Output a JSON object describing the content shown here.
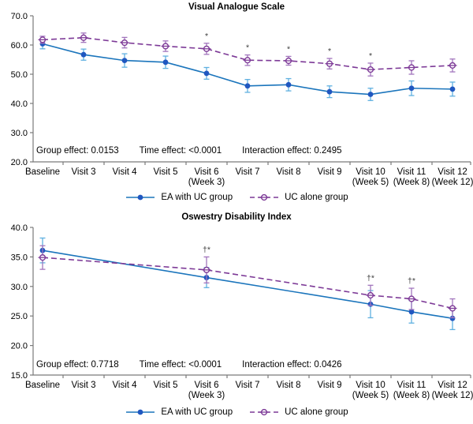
{
  "chart_data": [
    {
      "type": "line",
      "title": "Visual Analogue Scale",
      "ylim": [
        20,
        70
      ],
      "ytick_step": 10,
      "grid": false,
      "legend_position": "bottom",
      "categories": [
        {
          "label": "Baseline",
          "sub": ""
        },
        {
          "label": "Visit 3",
          "sub": ""
        },
        {
          "label": "Visit 4",
          "sub": ""
        },
        {
          "label": "Visit 5",
          "sub": ""
        },
        {
          "label": "Visit 6",
          "sub": "(Week 3)"
        },
        {
          "label": "Visit 7",
          "sub": ""
        },
        {
          "label": "Visit 8",
          "sub": ""
        },
        {
          "label": "Visit 9",
          "sub": ""
        },
        {
          "label": "Visit 10",
          "sub": "(Week 5)"
        },
        {
          "label": "Visit 11",
          "sub": "(Week 8)"
        },
        {
          "label": "Visit 12",
          "sub": "(Week 12)"
        }
      ],
      "series": [
        {
          "name": "EA with UC group",
          "line_style": "solid",
          "marker": "filled-circle",
          "color": "#1b75bc",
          "marker_color": "#2057c0",
          "error_color": "#5fb0e0",
          "values": [
            60.4,
            56.7,
            54.7,
            54.1,
            50.3,
            46.0,
            46.4,
            44.0,
            43.1,
            45.2,
            44.9
          ],
          "errors": [
            1.7,
            1.9,
            2.3,
            2.1,
            2.0,
            2.2,
            2.1,
            2.0,
            2.1,
            2.5,
            2.4
          ]
        },
        {
          "name": "UC alone group",
          "line_style": "dashed",
          "marker": "open-circle",
          "color": "#7d3a97",
          "marker_color": "#7d3a97",
          "error_color": "#a275bd",
          "values": [
            61.8,
            62.5,
            60.8,
            59.6,
            58.7,
            54.8,
            54.6,
            53.6,
            51.6,
            52.3,
            53.0
          ],
          "errors": [
            1.2,
            1.6,
            1.8,
            1.8,
            1.9,
            1.8,
            1.5,
            1.8,
            2.2,
            2.3,
            2.2
          ]
        }
      ],
      "annotations": [
        {
          "category_index": 4,
          "series_index": 1,
          "text": "*"
        },
        {
          "category_index": 5,
          "series_index": 1,
          "text": "*"
        },
        {
          "category_index": 6,
          "series_index": 1,
          "text": "*"
        },
        {
          "category_index": 7,
          "series_index": 1,
          "text": "*"
        },
        {
          "category_index": 8,
          "series_index": 1,
          "text": "*"
        }
      ],
      "stats": {
        "group": "Group effect: 0.0153",
        "time": "Time effect: <0.0001",
        "interaction": "Interaction effect: 0.2495"
      }
    },
    {
      "type": "line",
      "title": "Oswestry Disability Index",
      "ylim": [
        15,
        40
      ],
      "ytick_step": 5,
      "grid": false,
      "legend_position": "bottom",
      "categories": [
        {
          "label": "Baseline",
          "sub": ""
        },
        {
          "label": "Visit 3",
          "sub": ""
        },
        {
          "label": "Visit 4",
          "sub": ""
        },
        {
          "label": "Visit 5",
          "sub": ""
        },
        {
          "label": "Visit 6",
          "sub": "(Week 3)"
        },
        {
          "label": "Visit 7",
          "sub": ""
        },
        {
          "label": "Visit 8",
          "sub": ""
        },
        {
          "label": "Visit 9",
          "sub": ""
        },
        {
          "label": "Visit 10",
          "sub": "(Week 5)"
        },
        {
          "label": "Visit 11",
          "sub": "(Week 8)"
        },
        {
          "label": "Visit 12",
          "sub": "(Week 12)"
        }
      ],
      "series": [
        {
          "name": "EA with UC group",
          "line_style": "solid",
          "marker": "filled-circle",
          "color": "#1b75bc",
          "marker_color": "#2057c0",
          "error_color": "#5fb0e0",
          "values": [
            36.1,
            null,
            null,
            null,
            31.5,
            null,
            null,
            null,
            27.0,
            25.7,
            24.6
          ],
          "errors": [
            2.1,
            null,
            null,
            null,
            1.7,
            null,
            null,
            null,
            2.3,
            1.9,
            1.9
          ]
        },
        {
          "name": "UC alone group",
          "line_style": "dashed",
          "marker": "open-circle",
          "color": "#7d3a97",
          "marker_color": "#7d3a97",
          "error_color": "#a275bd",
          "values": [
            34.9,
            null,
            null,
            null,
            32.8,
            null,
            null,
            null,
            28.5,
            27.9,
            26.3
          ],
          "errors": [
            2.0,
            null,
            null,
            null,
            2.2,
            null,
            null,
            null,
            1.7,
            1.8,
            1.6
          ]
        }
      ],
      "annotations": [
        {
          "category_index": 4,
          "series_index": 1,
          "text": "†*"
        },
        {
          "category_index": 8,
          "series_index": 1,
          "text": "†*"
        },
        {
          "category_index": 9,
          "series_index": 1,
          "text": "†*"
        }
      ],
      "stats": {
        "group": "Group effect: 0.7718",
        "time": "Time effect: <0.0001",
        "interaction": "Interaction effect: 0.0426"
      }
    }
  ]
}
